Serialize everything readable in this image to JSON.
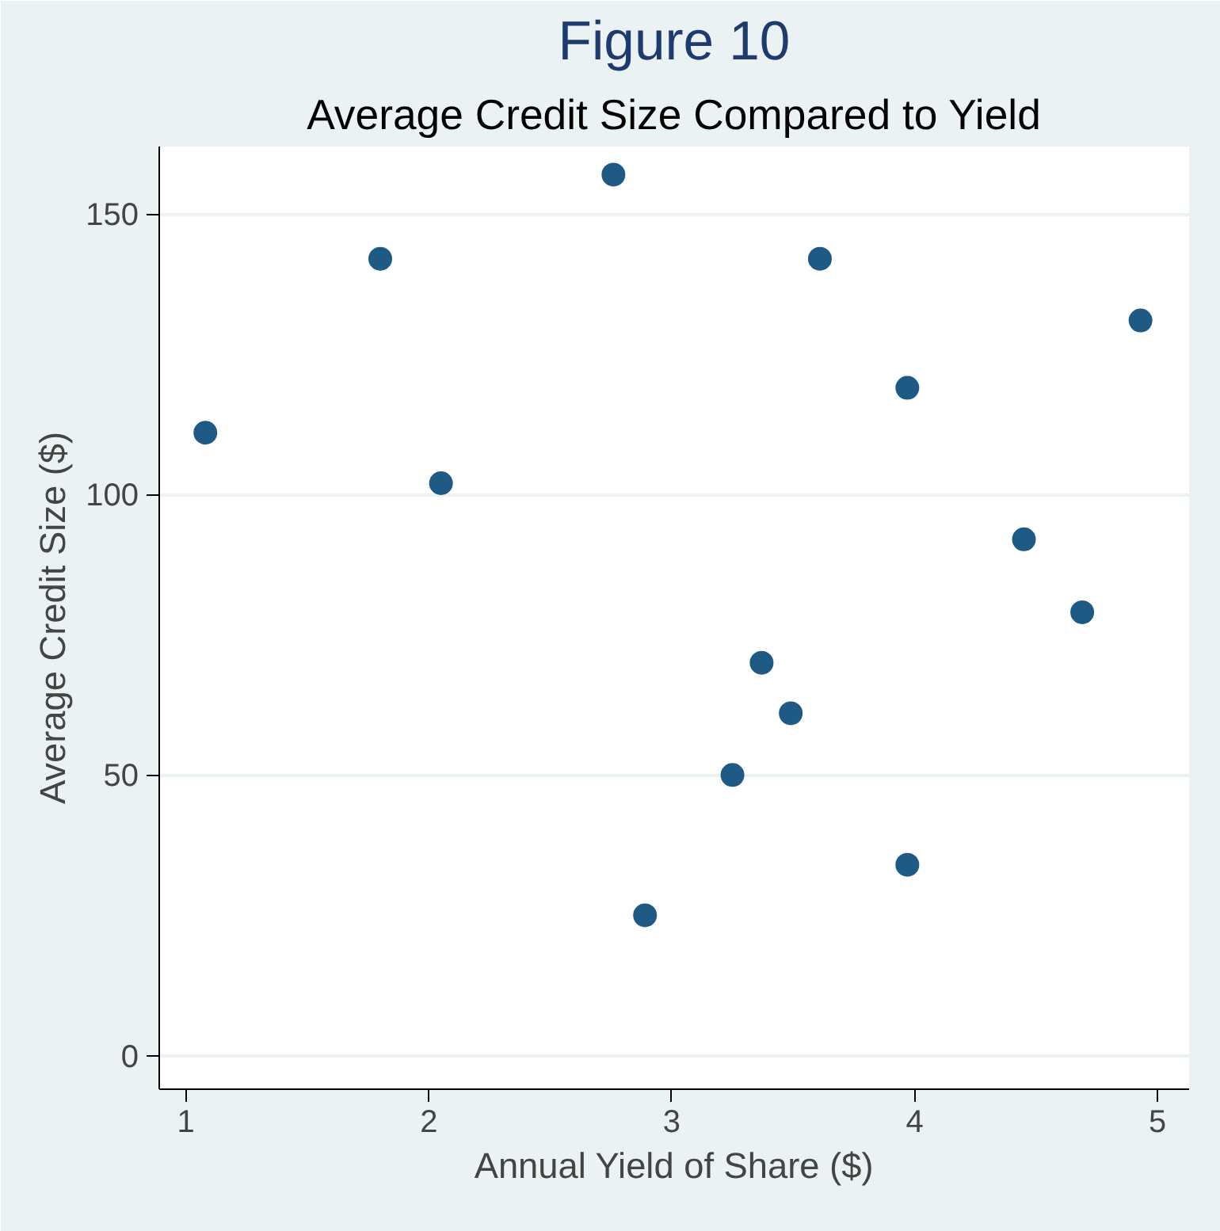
{
  "chart_data": {
    "type": "scatter",
    "title": "Figure 10",
    "subtitle": "Average Credit Size Compared to Yield",
    "xlabel": "Annual Yield of Share ($)",
    "ylabel": "Average Credit Size ($)",
    "x": [
      1.08,
      1.8,
      2.05,
      2.76,
      2.89,
      3.25,
      3.37,
      3.49,
      3.61,
      3.97,
      3.97,
      4.45,
      4.69,
      4.93
    ],
    "series": [
      {
        "color": "#1f5a85",
        "values": [
          111,
          142,
          102,
          157,
          25,
          50,
          70,
          61,
          142,
          119,
          34,
          92,
          79,
          131
        ]
      }
    ],
    "xlim": [
      0.89,
      5.13
    ],
    "ylim": [
      -6,
      162
    ],
    "xticks": [
      1,
      2,
      3,
      4,
      5
    ],
    "yticks": [
      0,
      50,
      100,
      150
    ],
    "grid": "y",
    "marker": "circle"
  }
}
